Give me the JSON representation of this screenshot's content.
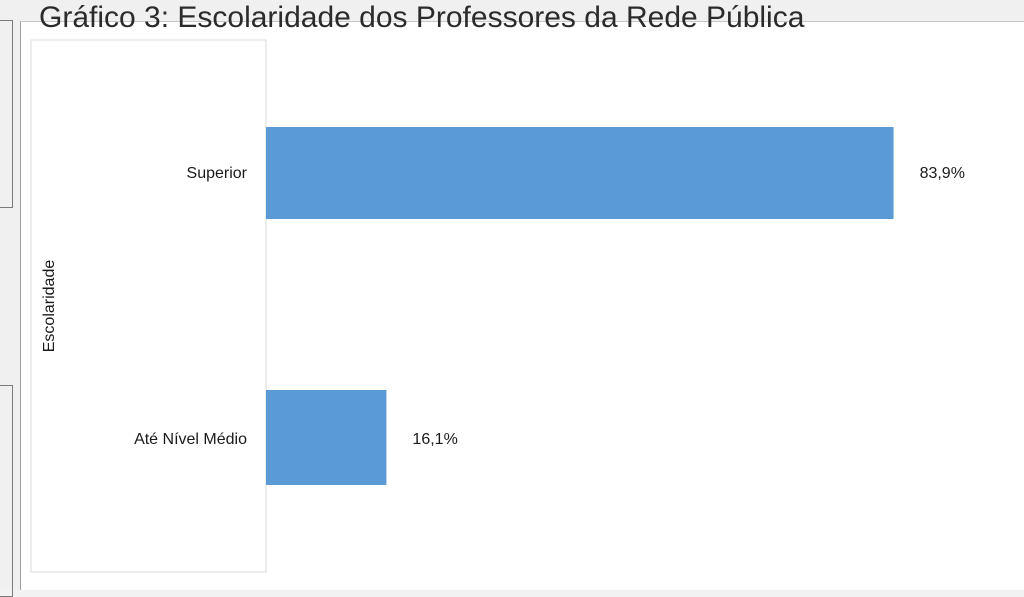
{
  "chart_data": {
    "type": "bar",
    "orientation": "horizontal",
    "title": "Gráfico 3: Escolaridade dos Professores da Rede Pública",
    "xlabel": "",
    "ylabel": "Escolaridade",
    "categories": [
      "Superior",
      "Até Nível Médio"
    ],
    "values": [
      83.9,
      16.1
    ],
    "value_labels": [
      "83,9%",
      "16,1%"
    ],
    "unit": "%",
    "xlim": [
      0,
      100
    ],
    "grid": false,
    "legend": "none",
    "bar_color": "#5b9bd5"
  }
}
